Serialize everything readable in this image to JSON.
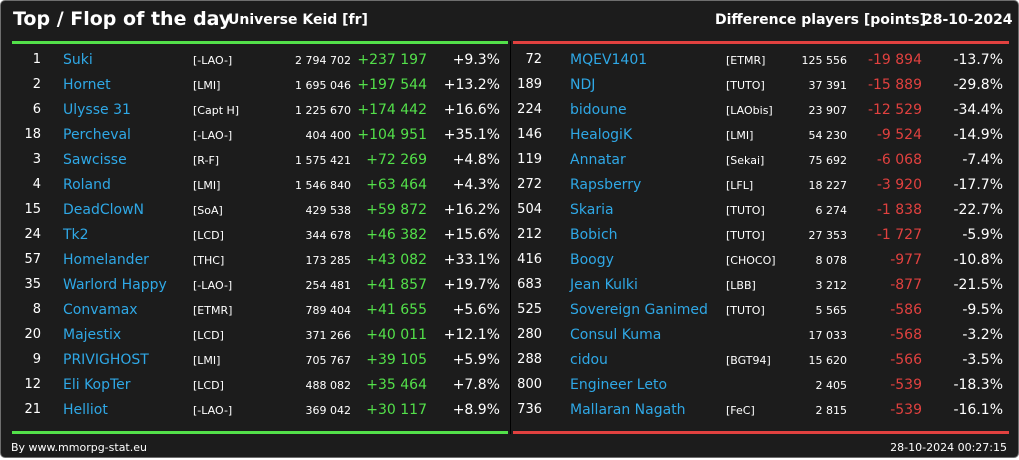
{
  "header": {
    "title": "Top / Flop of the day",
    "universe": "Universe Keid [fr]",
    "metric": "Difference players [points]",
    "date": "28-10-2024"
  },
  "colors": {
    "background": "#1c1c1c",
    "name": "#2fa8e6",
    "positive": "#53e04a",
    "negative": "#e1413f"
  },
  "top": [
    {
      "rank": "1",
      "name": "Suki",
      "alliance": "[-LAO-]",
      "points": "2 794 702",
      "diff": "+237 197",
      "pct": "+9.3%"
    },
    {
      "rank": "2",
      "name": "Hornet",
      "alliance": "[LMI]",
      "points": "1 695 046",
      "diff": "+197 544",
      "pct": "+13.2%"
    },
    {
      "rank": "6",
      "name": "Ulysse 31",
      "alliance": "[Capt H]",
      "points": "1 225 670",
      "diff": "+174 442",
      "pct": "+16.6%"
    },
    {
      "rank": "18",
      "name": "Percheval",
      "alliance": "[-LAO-]",
      "points": "404 400",
      "diff": "+104 951",
      "pct": "+35.1%"
    },
    {
      "rank": "3",
      "name": "Sawcisse",
      "alliance": "[R-F]",
      "points": "1 575 421",
      "diff": "+72 269",
      "pct": "+4.8%"
    },
    {
      "rank": "4",
      "name": "Roland",
      "alliance": "[LMI]",
      "points": "1 546 840",
      "diff": "+63 464",
      "pct": "+4.3%"
    },
    {
      "rank": "15",
      "name": "DeadClowN",
      "alliance": "[SoA]",
      "points": "429 538",
      "diff": "+59 872",
      "pct": "+16.2%"
    },
    {
      "rank": "24",
      "name": "Tk2",
      "alliance": "[LCD]",
      "points": "344 678",
      "diff": "+46 382",
      "pct": "+15.6%"
    },
    {
      "rank": "57",
      "name": "Homelander",
      "alliance": "[THC]",
      "points": "173 285",
      "diff": "+43 082",
      "pct": "+33.1%"
    },
    {
      "rank": "35",
      "name": "Warlord Happy",
      "alliance": "[-LAO-]",
      "points": "254 481",
      "diff": "+41 857",
      "pct": "+19.7%"
    },
    {
      "rank": "8",
      "name": "Convamax",
      "alliance": "[ETMR]",
      "points": "789 404",
      "diff": "+41 655",
      "pct": "+5.6%"
    },
    {
      "rank": "20",
      "name": "Majestix",
      "alliance": "[LCD]",
      "points": "371 266",
      "diff": "+40 011",
      "pct": "+12.1%"
    },
    {
      "rank": "9",
      "name": "PRIVIGHOST",
      "alliance": "[LMI]",
      "points": "705 767",
      "diff": "+39 105",
      "pct": "+5.9%"
    },
    {
      "rank": "12",
      "name": "Eli KopTer",
      "alliance": "[LCD]",
      "points": "488 082",
      "diff": "+35 464",
      "pct": "+7.8%"
    },
    {
      "rank": "21",
      "name": "Helliot",
      "alliance": "[-LAO-]",
      "points": "369 042",
      "diff": "+30 117",
      "pct": "+8.9%"
    }
  ],
  "flop": [
    {
      "rank": "72",
      "name": "MQEV1401",
      "alliance": "[ETMR]",
      "points": "125 556",
      "diff": "-19 894",
      "pct": "-13.7%"
    },
    {
      "rank": "189",
      "name": "NDJ",
      "alliance": "[TUTO]",
      "points": "37 391",
      "diff": "-15 889",
      "pct": "-29.8%"
    },
    {
      "rank": "224",
      "name": "bidoune",
      "alliance": "[LAObis]",
      "points": "23 907",
      "diff": "-12 529",
      "pct": "-34.4%"
    },
    {
      "rank": "146",
      "name": "HealogiK",
      "alliance": "[LMI]",
      "points": "54 230",
      "diff": "-9 524",
      "pct": "-14.9%"
    },
    {
      "rank": "119",
      "name": "Annatar",
      "alliance": "[Sekai]",
      "points": "75 692",
      "diff": "-6 068",
      "pct": "-7.4%"
    },
    {
      "rank": "272",
      "name": "Rapsberry",
      "alliance": "[LFL]",
      "points": "18 227",
      "diff": "-3 920",
      "pct": "-17.7%"
    },
    {
      "rank": "504",
      "name": "Skaria",
      "alliance": "[TUTO]",
      "points": "6 274",
      "diff": "-1 838",
      "pct": "-22.7%"
    },
    {
      "rank": "212",
      "name": "Bobich",
      "alliance": "[TUTO]",
      "points": "27 353",
      "diff": "-1 727",
      "pct": "-5.9%"
    },
    {
      "rank": "416",
      "name": "Boogy",
      "alliance": "[CHOCO]",
      "points": "8 078",
      "diff": "-977",
      "pct": "-10.8%"
    },
    {
      "rank": "683",
      "name": "Jean Kulki",
      "alliance": "[LBB]",
      "points": "3 212",
      "diff": "-877",
      "pct": "-21.5%"
    },
    {
      "rank": "525",
      "name": "Sovereign Ganimed",
      "alliance": "[TUTO]",
      "points": "5 565",
      "diff": "-586",
      "pct": "-9.5%"
    },
    {
      "rank": "280",
      "name": "Consul Kuma",
      "alliance": "",
      "points": "17 033",
      "diff": "-568",
      "pct": "-3.2%"
    },
    {
      "rank": "288",
      "name": "cidou",
      "alliance": "[BGT94]",
      "points": "15 620",
      "diff": "-566",
      "pct": "-3.5%"
    },
    {
      "rank": "800",
      "name": "Engineer Leto",
      "alliance": "",
      "points": "2 405",
      "diff": "-539",
      "pct": "-18.3%"
    },
    {
      "rank": "736",
      "name": "Mallaran Nagath",
      "alliance": "[FeC]",
      "points": "2 815",
      "diff": "-539",
      "pct": "-16.1%"
    }
  ],
  "footer": {
    "source": "By www.mmorpg-stat.eu",
    "timestamp": "28-10-2024 00:27:15"
  }
}
